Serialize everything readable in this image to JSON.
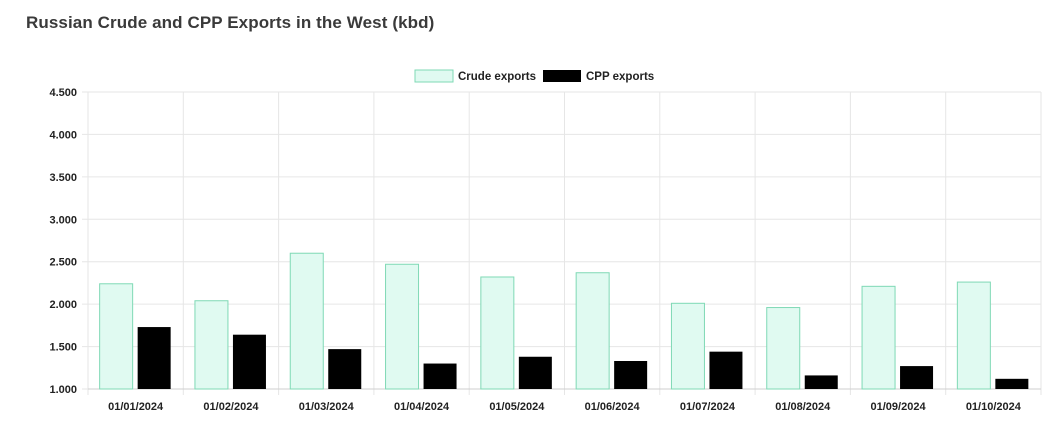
{
  "page": {
    "title": "Russian Crude and CPP Exports in the West (kbd)"
  },
  "colors": {
    "crude_fill": "#e0faf1",
    "crude_stroke": "#7fd9b5",
    "cpp_fill": "#000000",
    "grid": "#e6e6e6"
  },
  "chart_data": {
    "type": "bar",
    "title": "Russian Crude and CPP Exports in the West (kbd)",
    "categories": [
      "01/01/2024",
      "01/02/2024",
      "01/03/2024",
      "01/04/2024",
      "01/05/2024",
      "01/06/2024",
      "01/07/2024",
      "01/08/2024",
      "01/09/2024",
      "01/10/2024"
    ],
    "series": [
      {
        "name": "Crude exports",
        "values": [
          2.24,
          2.04,
          2.6,
          2.47,
          2.32,
          2.37,
          2.01,
          1.96,
          2.21,
          2.26
        ]
      },
      {
        "name": "CPP exports",
        "values": [
          1.73,
          1.64,
          1.47,
          1.3,
          1.38,
          1.33,
          1.44,
          1.16,
          1.27,
          1.12
        ]
      }
    ],
    "ylim": [
      1.0,
      4.5
    ],
    "yticks": [
      "4.500",
      "4.000",
      "3.500",
      "3.000",
      "2.500",
      "2.000",
      "1.500",
      "1.000"
    ],
    "grid": true,
    "legend": "top-center",
    "xlabel": "",
    "ylabel": ""
  }
}
